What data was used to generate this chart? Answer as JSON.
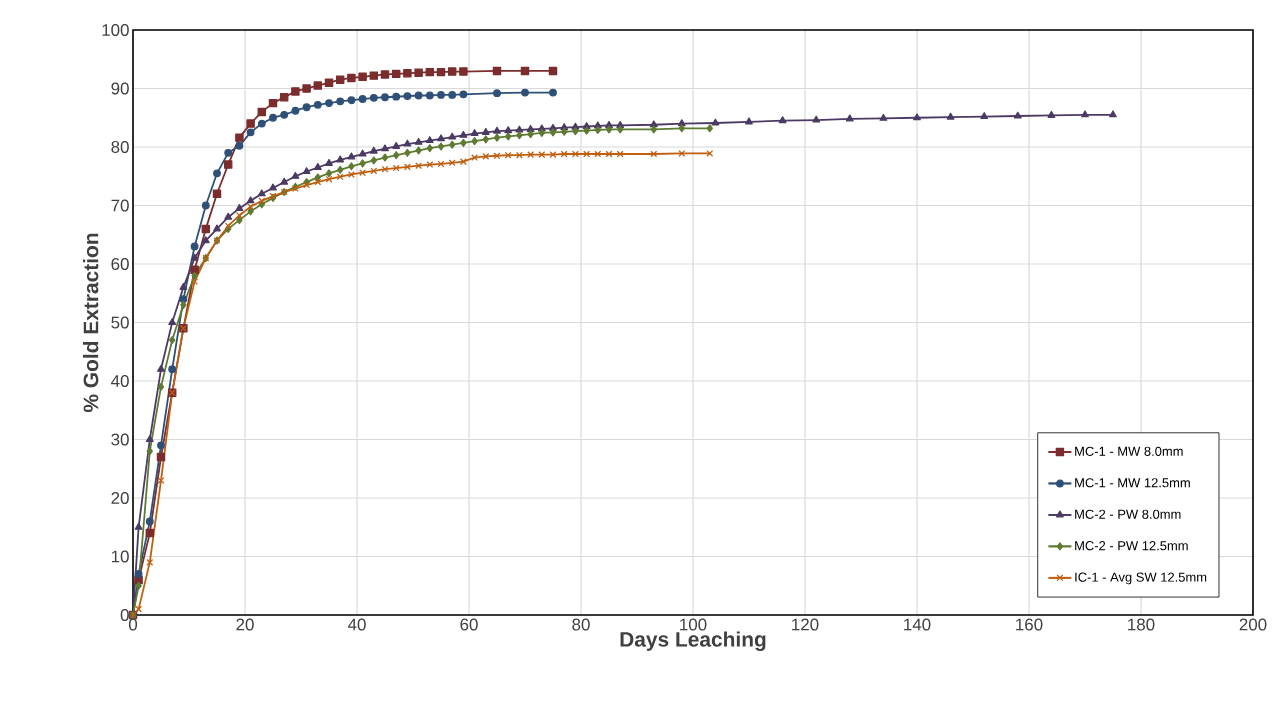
{
  "chart_data": {
    "type": "line",
    "xlabel": "Days Leaching",
    "ylabel": "% Gold Extraction",
    "xlim": [
      0,
      200
    ],
    "ylim": [
      0,
      100
    ],
    "xticks": [
      0,
      20,
      40,
      60,
      80,
      100,
      120,
      140,
      160,
      180,
      200
    ],
    "yticks": [
      0,
      10,
      20,
      30,
      40,
      50,
      60,
      70,
      80,
      90,
      100
    ],
    "grid": true,
    "legend": "bottom right",
    "line_style": "solid",
    "series": [
      {
        "name": "MC-1 - MW 8.0mm",
        "color": "#7b2c2c",
        "marker": "square",
        "x": [
          0,
          1,
          3,
          5,
          7,
          9,
          11,
          13,
          15,
          17,
          19,
          21,
          23,
          25,
          27,
          29,
          31,
          33,
          35,
          37,
          39,
          41,
          43,
          45,
          47,
          49,
          51,
          53,
          55,
          57,
          59,
          65,
          70,
          75
        ],
        "values": [
          0,
          6,
          14,
          27,
          38,
          49,
          59,
          66,
          72,
          77,
          81.6,
          84,
          86,
          87.5,
          88.5,
          89.5,
          90,
          90.5,
          91,
          91.5,
          91.8,
          92,
          92.2,
          92.4,
          92.5,
          92.6,
          92.7,
          92.8,
          92.8,
          92.9,
          92.9,
          93,
          93,
          93
        ]
      },
      {
        "name": "MC-1 - MW 12.5mm",
        "color": "#2e5077",
        "marker": "circle",
        "x": [
          0,
          1,
          3,
          5,
          7,
          9,
          11,
          13,
          15,
          17,
          19,
          21,
          23,
          25,
          27,
          29,
          31,
          33,
          35,
          37,
          39,
          41,
          43,
          45,
          47,
          49,
          51,
          53,
          55,
          57,
          59,
          65,
          70,
          75
        ],
        "values": [
          0,
          7,
          16,
          29,
          42,
          54,
          63,
          70,
          75.5,
          79,
          80.2,
          82.5,
          84,
          85,
          85.5,
          86.2,
          86.8,
          87.2,
          87.5,
          87.8,
          88,
          88.2,
          88.4,
          88.5,
          88.6,
          88.7,
          88.8,
          88.8,
          88.9,
          88.9,
          89,
          89.2,
          89.3,
          89.3
        ]
      },
      {
        "name": "MC-2 - PW 8.0mm",
        "color": "#4b3a63",
        "marker": "triangle",
        "x": [
          0,
          1,
          3,
          5,
          7,
          9,
          11,
          13,
          15,
          17,
          19,
          21,
          23,
          25,
          27,
          29,
          31,
          33,
          35,
          37,
          39,
          41,
          43,
          45,
          47,
          49,
          51,
          53,
          55,
          57,
          59,
          61,
          63,
          65,
          67,
          69,
          71,
          73,
          75,
          77,
          79,
          81,
          83,
          85,
          87,
          93,
          98,
          104,
          110,
          116,
          122,
          128,
          134,
          140,
          146,
          152,
          158,
          164,
          170,
          175
        ],
        "values": [
          0,
          15,
          30,
          42,
          50,
          56,
          61,
          64,
          66,
          68,
          69.5,
          70.8,
          72,
          73,
          74,
          75,
          75.8,
          76.5,
          77.2,
          77.8,
          78.3,
          78.8,
          79.3,
          79.7,
          80.1,
          80.5,
          80.8,
          81.1,
          81.4,
          81.7,
          82,
          82.3,
          82.5,
          82.7,
          82.8,
          82.9,
          83,
          83.1,
          83.2,
          83.3,
          83.4,
          83.5,
          83.6,
          83.7,
          83.7,
          83.8,
          84,
          84.1,
          84.3,
          84.5,
          84.6,
          84.8,
          84.9,
          85,
          85.1,
          85.2,
          85.3,
          85.4,
          85.5,
          85.5
        ]
      },
      {
        "name": "MC-2 - PW 12.5mm",
        "color": "#5f7a32",
        "marker": "diamond",
        "x": [
          0,
          1,
          3,
          5,
          7,
          9,
          11,
          13,
          15,
          17,
          19,
          21,
          23,
          25,
          27,
          29,
          31,
          33,
          35,
          37,
          39,
          41,
          43,
          45,
          47,
          49,
          51,
          53,
          55,
          57,
          59,
          61,
          63,
          65,
          67,
          69,
          71,
          73,
          75,
          77,
          79,
          81,
          83,
          85,
          87,
          93,
          98,
          103
        ],
        "values": [
          0,
          5,
          28,
          39,
          47,
          53,
          58,
          61,
          64,
          66,
          67.5,
          69,
          70.2,
          71.3,
          72.3,
          73.2,
          74,
          74.8,
          75.5,
          76.1,
          76.7,
          77.2,
          77.7,
          78.2,
          78.6,
          79,
          79.4,
          79.8,
          80.1,
          80.4,
          80.7,
          81,
          81.3,
          81.6,
          81.8,
          82,
          82.2,
          82.4,
          82.5,
          82.6,
          82.7,
          82.8,
          82.9,
          83,
          83,
          83,
          83.2,
          83.2
        ]
      },
      {
        "name": "IC-1 - Avg SW 12.5mm",
        "color": "#c05f0f",
        "marker": "cross",
        "x": [
          0,
          1,
          3,
          5,
          7,
          9,
          11,
          13,
          15,
          17,
          19,
          21,
          23,
          25,
          27,
          29,
          31,
          33,
          35,
          37,
          39,
          41,
          43,
          45,
          47,
          49,
          51,
          53,
          55,
          57,
          59,
          61,
          63,
          65,
          67,
          69,
          71,
          73,
          75,
          77,
          79,
          81,
          83,
          85,
          87,
          93,
          98,
          103
        ],
        "values": [
          0,
          1,
          9,
          23,
          38,
          49,
          57,
          61,
          64,
          66.5,
          68.3,
          69.8,
          70.8,
          71.6,
          72.3,
          72.9,
          73.5,
          74,
          74.5,
          74.9,
          75.3,
          75.6,
          75.9,
          76.2,
          76.4,
          76.6,
          76.8,
          77,
          77.1,
          77.3,
          77.5,
          78.2,
          78.4,
          78.5,
          78.6,
          78.6,
          78.7,
          78.7,
          78.7,
          78.8,
          78.8,
          78.8,
          78.8,
          78.8,
          78.8,
          78.8,
          78.9,
          78.9
        ]
      }
    ]
  }
}
